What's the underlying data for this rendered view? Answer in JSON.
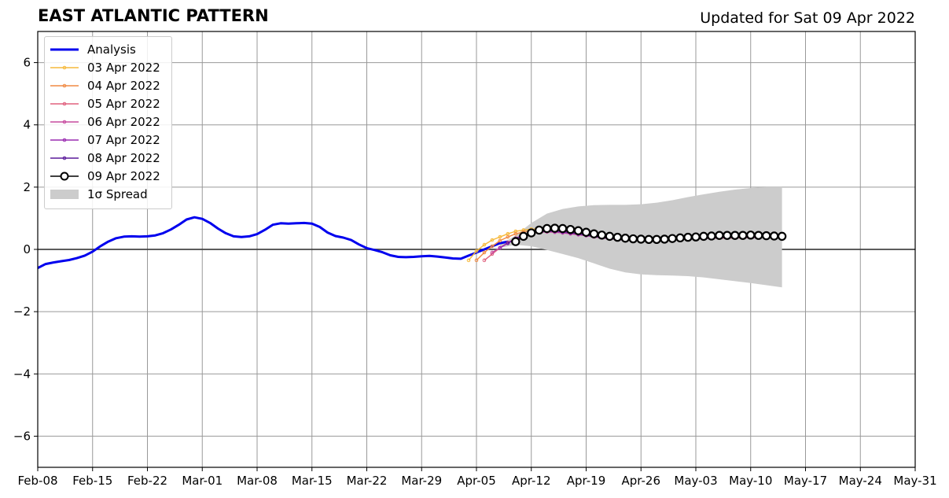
{
  "header": {
    "title": "EAST ATLANTIC PATTERN",
    "updated": "Updated for Sat 09 Apr 2022"
  },
  "legend": {
    "items": [
      {
        "label": "Analysis",
        "color": "#0000ee",
        "kind": "line"
      },
      {
        "label": "03 Apr 2022",
        "color": "#f6b93b",
        "kind": "marker-line"
      },
      {
        "label": "04 Apr 2022",
        "color": "#f08a44",
        "kind": "marker-line"
      },
      {
        "label": "05 Apr 2022",
        "color": "#e0607e",
        "kind": "marker-line"
      },
      {
        "label": "06 Apr 2022",
        "color": "#c64a9e",
        "kind": "marker-line"
      },
      {
        "label": "07 Apr 2022",
        "color": "#9a2bb0",
        "kind": "marker-line"
      },
      {
        "label": "08 Apr 2022",
        "color": "#5a1a9a",
        "kind": "marker-line"
      },
      {
        "label": "09 Apr 2022",
        "color": "#000000",
        "kind": "circle-line"
      },
      {
        "label": "1σ Spread",
        "color": "#cccccc",
        "kind": "patch"
      }
    ]
  },
  "chart_data": {
    "type": "line",
    "title": "EAST ATLANTIC PATTERN",
    "subtitle": "Updated for Sat 09 Apr 2022",
    "xlim": [
      "2022-02-08",
      "2022-05-31"
    ],
    "ylim": [
      -7,
      7
    ],
    "x_ticks": [
      "Feb-08",
      "Feb-15",
      "Feb-22",
      "Mar-01",
      "Mar-08",
      "Mar-15",
      "Mar-22",
      "Mar-29",
      "Apr-05",
      "Apr-12",
      "Apr-19",
      "Apr-26",
      "May-03",
      "May-10",
      "May-17",
      "May-24",
      "May-31"
    ],
    "y_ticks": [
      6,
      4,
      2,
      0,
      -2,
      -4,
      -6
    ],
    "y_tick_labels": [
      "6",
      "4",
      "2",
      "0",
      "−2",
      "−4",
      "−6"
    ],
    "grid": true,
    "legend_position": "top-left",
    "series": [
      {
        "name": "Analysis",
        "color": "#0000ee",
        "x": [
          "2022-02-08",
          "2022-02-09",
          "2022-02-10",
          "2022-02-11",
          "2022-02-12",
          "2022-02-13",
          "2022-02-14",
          "2022-02-15",
          "2022-02-16",
          "2022-02-17",
          "2022-02-18",
          "2022-02-19",
          "2022-02-20",
          "2022-02-21",
          "2022-02-22",
          "2022-02-23",
          "2022-02-24",
          "2022-02-25",
          "2022-02-26",
          "2022-02-27",
          "2022-02-28",
          "2022-03-01",
          "2022-03-02",
          "2022-03-03",
          "2022-03-04",
          "2022-03-05",
          "2022-03-06",
          "2022-03-07",
          "2022-03-08",
          "2022-03-09",
          "2022-03-10",
          "2022-03-11",
          "2022-03-12",
          "2022-03-13",
          "2022-03-14",
          "2022-03-15",
          "2022-03-16",
          "2022-03-17",
          "2022-03-18",
          "2022-03-19",
          "2022-03-20",
          "2022-03-21",
          "2022-03-22",
          "2022-03-23",
          "2022-03-24",
          "2022-03-25",
          "2022-03-26",
          "2022-03-27",
          "2022-03-28",
          "2022-03-29",
          "2022-03-30",
          "2022-03-31",
          "2022-04-01",
          "2022-04-02",
          "2022-04-03",
          "2022-04-04",
          "2022-04-05",
          "2022-04-06",
          "2022-04-07",
          "2022-04-08",
          "2022-04-09"
        ],
        "y": [
          -0.6,
          -0.47,
          -0.42,
          -0.38,
          -0.34,
          -0.28,
          -0.2,
          -0.07,
          0.1,
          0.25,
          0.36,
          0.41,
          0.42,
          0.41,
          0.42,
          0.45,
          0.52,
          0.64,
          0.79,
          0.96,
          1.03,
          0.98,
          0.85,
          0.67,
          0.52,
          0.42,
          0.4,
          0.42,
          0.49,
          0.63,
          0.79,
          0.84,
          0.83,
          0.84,
          0.85,
          0.83,
          0.72,
          0.54,
          0.43,
          0.38,
          0.3,
          0.16,
          0.04,
          -0.02,
          -0.09,
          -0.19,
          -0.24,
          -0.25,
          -0.24,
          -0.22,
          -0.21,
          -0.23,
          -0.26,
          -0.29,
          -0.3,
          -0.2,
          -0.1,
          0.0,
          0.1,
          0.2,
          0.25
        ]
      },
      {
        "name": "03 Apr 2022",
        "color": "#f6b93b",
        "x": [
          "2022-04-04",
          "2022-04-05",
          "2022-04-06",
          "2022-04-07",
          "2022-04-08",
          "2022-04-09",
          "2022-04-10",
          "2022-04-11",
          "2022-04-12",
          "2022-04-13",
          "2022-04-14",
          "2022-04-15",
          "2022-04-16",
          "2022-04-17",
          "2022-04-18",
          "2022-04-19",
          "2022-04-20",
          "2022-04-21",
          "2022-04-22",
          "2022-04-23",
          "2022-04-24",
          "2022-04-25",
          "2022-04-26",
          "2022-04-27",
          "2022-04-28",
          "2022-04-29",
          "2022-04-30",
          "2022-05-01",
          "2022-05-02",
          "2022-05-03",
          "2022-05-04",
          "2022-05-05",
          "2022-05-06",
          "2022-05-07",
          "2022-05-08"
        ],
        "y": [
          -0.35,
          -0.05,
          0.15,
          0.3,
          0.4,
          0.5,
          0.58,
          0.62,
          0.65,
          0.66,
          0.65,
          0.63,
          0.6,
          0.58,
          0.55,
          0.52,
          0.48,
          0.45,
          0.42,
          0.38,
          0.35,
          0.33,
          0.32,
          0.31,
          0.31,
          0.32,
          0.33,
          0.34,
          0.35,
          0.36,
          0.36,
          0.37,
          0.37,
          0.37,
          0.37
        ]
      },
      {
        "name": "04 Apr 2022",
        "color": "#f08a44",
        "x": [
          "2022-04-05",
          "2022-04-06",
          "2022-04-07",
          "2022-04-08",
          "2022-04-09",
          "2022-04-10",
          "2022-04-11",
          "2022-04-12",
          "2022-04-13",
          "2022-04-14",
          "2022-04-15",
          "2022-04-16",
          "2022-04-17",
          "2022-04-18",
          "2022-04-19",
          "2022-04-20",
          "2022-04-21",
          "2022-04-22",
          "2022-04-23",
          "2022-04-24",
          "2022-04-25",
          "2022-04-26",
          "2022-04-27",
          "2022-04-28",
          "2022-04-29",
          "2022-04-30",
          "2022-05-01",
          "2022-05-02",
          "2022-05-03",
          "2022-05-04",
          "2022-05-05",
          "2022-05-06",
          "2022-05-07",
          "2022-05-08",
          "2022-05-09"
        ],
        "y": [
          -0.35,
          -0.1,
          0.1,
          0.28,
          0.4,
          0.5,
          0.56,
          0.6,
          0.62,
          0.62,
          0.6,
          0.58,
          0.55,
          0.52,
          0.48,
          0.45,
          0.42,
          0.39,
          0.36,
          0.34,
          0.32,
          0.31,
          0.3,
          0.3,
          0.31,
          0.32,
          0.33,
          0.34,
          0.35,
          0.36,
          0.36,
          0.36,
          0.37,
          0.37,
          0.37
        ]
      },
      {
        "name": "05 Apr 2022",
        "color": "#e0607e",
        "x": [
          "2022-04-06",
          "2022-04-07",
          "2022-04-08",
          "2022-04-09",
          "2022-04-10",
          "2022-04-11",
          "2022-04-12",
          "2022-04-13",
          "2022-04-14",
          "2022-04-15",
          "2022-04-16",
          "2022-04-17",
          "2022-04-18",
          "2022-04-19",
          "2022-04-20",
          "2022-04-21",
          "2022-04-22",
          "2022-04-23",
          "2022-04-24",
          "2022-04-25",
          "2022-04-26",
          "2022-04-27",
          "2022-04-28",
          "2022-04-29",
          "2022-04-30",
          "2022-05-01",
          "2022-05-02",
          "2022-05-03",
          "2022-05-04",
          "2022-05-05",
          "2022-05-06",
          "2022-05-07",
          "2022-05-08",
          "2022-05-09",
          "2022-05-10"
        ],
        "y": [
          -0.35,
          -0.15,
          0.05,
          0.22,
          0.36,
          0.46,
          0.53,
          0.57,
          0.58,
          0.57,
          0.55,
          0.52,
          0.49,
          0.46,
          0.42,
          0.39,
          0.36,
          0.34,
          0.32,
          0.3,
          0.29,
          0.29,
          0.3,
          0.31,
          0.32,
          0.33,
          0.34,
          0.35,
          0.36,
          0.36,
          0.37,
          0.37,
          0.37,
          0.38,
          0.38
        ]
      },
      {
        "name": "06 Apr 2022",
        "color": "#c64a9e",
        "x": [
          "2022-04-07",
          "2022-04-08",
          "2022-04-09",
          "2022-04-10",
          "2022-04-11",
          "2022-04-12",
          "2022-04-13",
          "2022-04-14",
          "2022-04-15",
          "2022-04-16",
          "2022-04-17",
          "2022-04-18",
          "2022-04-19",
          "2022-04-20",
          "2022-04-21",
          "2022-04-22",
          "2022-04-23",
          "2022-04-24",
          "2022-04-25",
          "2022-04-26",
          "2022-04-27",
          "2022-04-28",
          "2022-04-29",
          "2022-04-30",
          "2022-05-01",
          "2022-05-02",
          "2022-05-03",
          "2022-05-04",
          "2022-05-05",
          "2022-05-06",
          "2022-05-07",
          "2022-05-08",
          "2022-05-09",
          "2022-05-10",
          "2022-05-11"
        ],
        "y": [
          -0.1,
          0.05,
          0.2,
          0.33,
          0.44,
          0.51,
          0.55,
          0.56,
          0.55,
          0.53,
          0.5,
          0.47,
          0.44,
          0.4,
          0.37,
          0.34,
          0.32,
          0.3,
          0.29,
          0.28,
          0.28,
          0.29,
          0.3,
          0.31,
          0.32,
          0.33,
          0.34,
          0.35,
          0.36,
          0.37,
          0.37,
          0.38,
          0.38,
          0.38,
          0.38
        ]
      },
      {
        "name": "07 Apr 2022",
        "color": "#9a2bb0",
        "x": [
          "2022-04-08",
          "2022-04-09",
          "2022-04-10",
          "2022-04-11",
          "2022-04-12",
          "2022-04-13",
          "2022-04-14",
          "2022-04-15",
          "2022-04-16",
          "2022-04-17",
          "2022-04-18",
          "2022-04-19",
          "2022-04-20",
          "2022-04-21",
          "2022-04-22",
          "2022-04-23",
          "2022-04-24",
          "2022-04-25",
          "2022-04-26",
          "2022-04-27",
          "2022-04-28",
          "2022-04-29",
          "2022-04-30",
          "2022-05-01",
          "2022-05-02",
          "2022-05-03",
          "2022-05-04",
          "2022-05-05",
          "2022-05-06",
          "2022-05-07",
          "2022-05-08",
          "2022-05-09",
          "2022-05-10",
          "2022-05-11",
          "2022-05-12"
        ],
        "y": [
          0.05,
          0.2,
          0.34,
          0.45,
          0.52,
          0.56,
          0.58,
          0.57,
          0.55,
          0.52,
          0.49,
          0.45,
          0.41,
          0.38,
          0.35,
          0.32,
          0.3,
          0.29,
          0.28,
          0.28,
          0.29,
          0.3,
          0.31,
          0.32,
          0.33,
          0.35,
          0.36,
          0.37,
          0.38,
          0.39,
          0.39,
          0.4,
          0.4,
          0.4,
          0.4
        ]
      },
      {
        "name": "08 Apr 2022",
        "color": "#5a1a9a",
        "x": [
          "2022-04-09",
          "2022-04-10",
          "2022-04-11",
          "2022-04-12",
          "2022-04-13",
          "2022-04-14",
          "2022-04-15",
          "2022-04-16",
          "2022-04-17",
          "2022-04-18",
          "2022-04-19",
          "2022-04-20",
          "2022-04-21",
          "2022-04-22",
          "2022-04-23",
          "2022-04-24",
          "2022-04-25",
          "2022-04-26",
          "2022-04-27",
          "2022-04-28",
          "2022-04-29",
          "2022-04-30",
          "2022-05-01",
          "2022-05-02",
          "2022-05-03",
          "2022-05-04",
          "2022-05-05",
          "2022-05-06",
          "2022-05-07",
          "2022-05-08",
          "2022-05-09",
          "2022-05-10",
          "2022-05-11",
          "2022-05-12",
          "2022-05-13"
        ],
        "y": [
          0.2,
          0.35,
          0.46,
          0.54,
          0.58,
          0.6,
          0.59,
          0.57,
          0.54,
          0.5,
          0.46,
          0.42,
          0.39,
          0.36,
          0.33,
          0.31,
          0.3,
          0.29,
          0.29,
          0.3,
          0.31,
          0.32,
          0.34,
          0.35,
          0.37,
          0.38,
          0.39,
          0.4,
          0.41,
          0.41,
          0.42,
          0.42,
          0.42,
          0.42,
          0.42
        ]
      },
      {
        "name": "09 Apr 2022",
        "color": "#000000",
        "x": [
          "2022-04-10",
          "2022-04-11",
          "2022-04-12",
          "2022-04-13",
          "2022-04-14",
          "2022-04-15",
          "2022-04-16",
          "2022-04-17",
          "2022-04-18",
          "2022-04-19",
          "2022-04-20",
          "2022-04-21",
          "2022-04-22",
          "2022-04-23",
          "2022-04-24",
          "2022-04-25",
          "2022-04-26",
          "2022-04-27",
          "2022-04-28",
          "2022-04-29",
          "2022-04-30",
          "2022-05-01",
          "2022-05-02",
          "2022-05-03",
          "2022-05-04",
          "2022-05-05",
          "2022-05-06",
          "2022-05-07",
          "2022-05-08",
          "2022-05-09",
          "2022-05-10",
          "2022-05-11",
          "2022-05-12",
          "2022-05-13",
          "2022-05-14"
        ],
        "y": [
          0.25,
          0.42,
          0.53,
          0.62,
          0.67,
          0.68,
          0.67,
          0.64,
          0.6,
          0.55,
          0.5,
          0.46,
          0.42,
          0.39,
          0.36,
          0.34,
          0.33,
          0.32,
          0.32,
          0.33,
          0.35,
          0.37,
          0.39,
          0.4,
          0.42,
          0.43,
          0.45,
          0.45,
          0.45,
          0.45,
          0.46,
          0.45,
          0.44,
          0.43,
          0.42
        ]
      }
    ],
    "spread": {
      "name": "1σ Spread",
      "color": "#cccccc",
      "x": [
        "2022-04-08",
        "2022-04-10",
        "2022-04-12",
        "2022-04-14",
        "2022-04-16",
        "2022-04-18",
        "2022-04-20",
        "2022-04-22",
        "2022-04-24",
        "2022-04-26",
        "2022-04-28",
        "2022-04-30",
        "2022-05-02",
        "2022-05-04",
        "2022-05-06",
        "2022-05-08",
        "2022-05-10",
        "2022-05-12",
        "2022-05-14"
      ],
      "upper": [
        0.15,
        0.45,
        0.85,
        1.15,
        1.3,
        1.38,
        1.42,
        1.43,
        1.43,
        1.45,
        1.5,
        1.58,
        1.68,
        1.77,
        1.85,
        1.92,
        1.97,
        2.0,
        2.0
      ],
      "lower": [
        0.05,
        0.15,
        0.1,
        -0.02,
        -0.15,
        -0.28,
        -0.45,
        -0.62,
        -0.74,
        -0.8,
        -0.83,
        -0.84,
        -0.86,
        -0.9,
        -0.96,
        -1.02,
        -1.08,
        -1.15,
        -1.22
      ]
    }
  }
}
